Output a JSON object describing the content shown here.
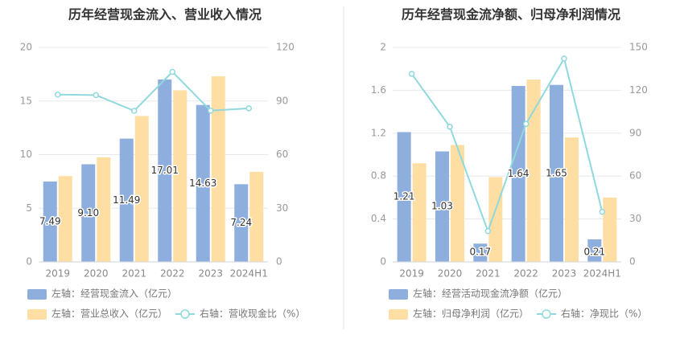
{
  "colors": {
    "bar_primary": "#8eaede",
    "bar_secondary": "#ffdea3",
    "line": "#8fd9dd",
    "divider": "#e0e0e0"
  },
  "chart_data": [
    {
      "type": "bar",
      "title": "历年经营现金流入、营业收入情况",
      "categories": [
        "2019",
        "2020",
        "2021",
        "2022",
        "2023",
        "2024H1"
      ],
      "left_axis": {
        "ylim": [
          0,
          20
        ],
        "ticks": [
          "0",
          "5",
          "10",
          "15",
          "20"
        ]
      },
      "right_axis": {
        "ylim": [
          0,
          120
        ],
        "ticks": [
          "0",
          "30",
          "60",
          "90",
          "120"
        ]
      },
      "series": [
        {
          "name": "左轴：经营现金流入（亿元）",
          "kind": "bar",
          "axis": "left",
          "values": [
            7.49,
            9.1,
            11.49,
            17.01,
            14.63,
            7.24
          ],
          "labels": [
            "7.49",
            "9.10",
            "11.49",
            "17.01",
            "14.63",
            "7.24"
          ]
        },
        {
          "name": "左轴：营业总收入（亿元）",
          "kind": "bar",
          "axis": "left",
          "values": [
            8.0,
            9.75,
            13.6,
            16.0,
            17.3,
            8.4
          ]
        },
        {
          "name": "右轴：营收现金比（%）",
          "kind": "line",
          "axis": "right",
          "values": [
            93.6,
            93.3,
            84.5,
            106.3,
            84.6,
            85.9
          ]
        }
      ]
    },
    {
      "type": "bar",
      "title": "历年经营现金流净额、归母净利润情况",
      "categories": [
        "2019",
        "2020",
        "2021",
        "2022",
        "2023",
        "2024H1"
      ],
      "left_axis": {
        "ylim": [
          0,
          2
        ],
        "ticks": [
          "0",
          "0.4",
          "0.8",
          "1.2",
          "1.6",
          "2"
        ]
      },
      "right_axis": {
        "ylim": [
          0,
          150
        ],
        "ticks": [
          "0",
          "30",
          "60",
          "90",
          "120",
          "150"
        ]
      },
      "series": [
        {
          "name": "左轴：经营活动现金流净额（亿元）",
          "kind": "bar",
          "axis": "left",
          "values": [
            1.21,
            1.03,
            0.17,
            1.64,
            1.65,
            0.21
          ],
          "labels": [
            "1.21",
            "1.03",
            "0.17",
            "1.64",
            "1.65",
            "0.21"
          ]
        },
        {
          "name": "左轴：归母净利润（亿元）",
          "kind": "bar",
          "axis": "left",
          "values": [
            0.92,
            1.09,
            0.79,
            1.7,
            1.16,
            0.6
          ]
        },
        {
          "name": "右轴：净现比（%）",
          "kind": "line",
          "axis": "right",
          "values": [
            131.5,
            94.5,
            21.5,
            96.5,
            142.2,
            35.0
          ]
        }
      ]
    }
  ]
}
